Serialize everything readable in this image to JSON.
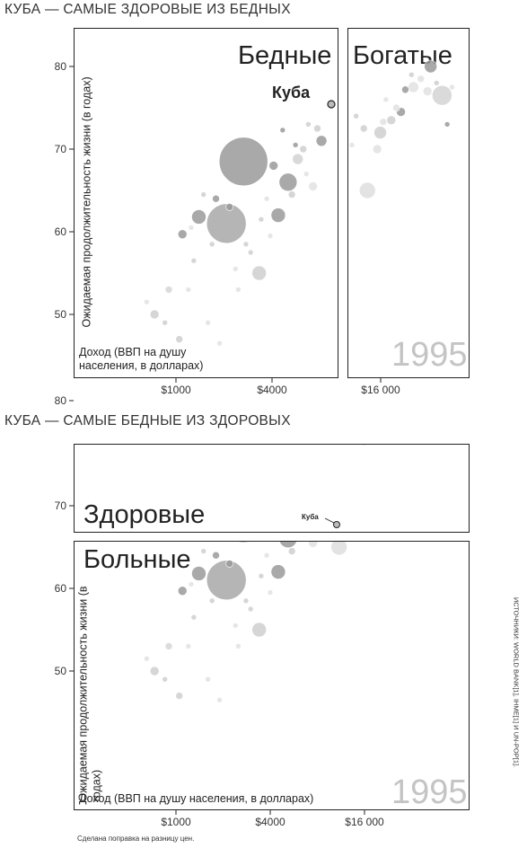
{
  "chart_data": [
    {
      "type": "scatter",
      "title": "КУБА — САМЫЕ ЗДОРОВЫЕ ИЗ БЕДНЫХ",
      "year_label": "1995",
      "panels": [
        "Бедные",
        "Богатые"
      ],
      "xlabel": "Доход (ВВП на душу населения, в долларах)",
      "ylabel": "Ожидаемая продолжительность жизни (в годах)",
      "xscale": "log",
      "x_ticks": [
        "$1000",
        "$4000",
        "$16 000"
      ],
      "y_ticks": [
        "50",
        "60",
        "70",
        "80"
      ],
      "ylim": [
        44,
        86
      ],
      "highlight": {
        "label": "Куба",
        "x": 8000,
        "y": 75.5
      },
      "bubble_size": "population",
      "grid": false
    },
    {
      "type": "scatter",
      "title": "КУБА — САМЫЕ БЕДНЫЕ ИЗ ЗДОРОВЫХ",
      "year_label": "1995",
      "panels": [
        "Здоровые",
        "Больные"
      ],
      "xlabel": "Доход (ВВП на душу населения, в долларах)",
      "ylabel": "Ожидаемая продолжительность жизни (в годах)",
      "xscale": "log",
      "x_ticks": [
        "$1000",
        "$4000",
        "$16 000"
      ],
      "y_ticks": [
        "50",
        "60",
        "70",
        "80"
      ],
      "ylim": [
        44,
        86
      ],
      "highlight": {
        "label": "Куба",
        "x": 8000,
        "y": 75.5
      },
      "bubble_size": "population",
      "grid": false
    }
  ],
  "bubbles": [
    {
      "x": 2700,
      "y": 68.5,
      "r": 27,
      "c": "#9a9a9a"
    },
    {
      "x": 2100,
      "y": 61.0,
      "r": 22,
      "c": "#a8a8a8"
    },
    {
      "x": 1400,
      "y": 61.8,
      "r": 8,
      "c": "#9a9a9a"
    },
    {
      "x": 3400,
      "y": 55.0,
      "r": 8,
      "c": "#cfcfcf"
    },
    {
      "x": 4500,
      "y": 62.0,
      "r": 8,
      "c": "#9a9a9a"
    },
    {
      "x": 5200,
      "y": 66.0,
      "r": 10,
      "c": "#9a9a9a"
    },
    {
      "x": 6000,
      "y": 68.8,
      "r": 6,
      "c": "#d2d2d2"
    },
    {
      "x": 8500,
      "y": 71.0,
      "r": 6,
      "c": "#9a9a9a"
    },
    {
      "x": 11000,
      "y": 65.0,
      "r": 9,
      "c": "#dedede"
    },
    {
      "x": 13000,
      "y": 72.0,
      "r": 7,
      "c": "#cfcfcf"
    },
    {
      "x": 25000,
      "y": 80.0,
      "r": 7,
      "c": "#9a9a9a"
    },
    {
      "x": 29000,
      "y": 76.5,
      "r": 11,
      "c": "#d4d4d4"
    },
    {
      "x": 20000,
      "y": 77.5,
      "r": 6,
      "c": "#e2e2e2"
    },
    {
      "x": 24000,
      "y": 77.0,
      "r": 5,
      "c": "#e2e2e2"
    },
    {
      "x": 15000,
      "y": 73.5,
      "r": 5,
      "c": "#cfcfcf"
    },
    {
      "x": 12500,
      "y": 70.0,
      "r": 5,
      "c": "#e2e2e2"
    },
    {
      "x": 17000,
      "y": 74.5,
      "r": 5,
      "c": "#9a9a9a"
    },
    {
      "x": 13500,
      "y": 73.3,
      "r": 4,
      "c": "#e2e2e2"
    },
    {
      "x": 2200,
      "y": 63.0,
      "r": 4,
      "c": "#9a9a9a"
    },
    {
      "x": 1100,
      "y": 59.7,
      "r": 5,
      "c": "#9a9a9a"
    },
    {
      "x": 730,
      "y": 50.0,
      "r": 5,
      "c": "#cfcfcf"
    },
    {
      "x": 900,
      "y": 53.0,
      "r": 4,
      "c": "#d6d6d6"
    },
    {
      "x": 1050,
      "y": 47.0,
      "r": 4,
      "c": "#cfcfcf"
    },
    {
      "x": 5500,
      "y": 64.5,
      "r": 4,
      "c": "#cfcfcf"
    },
    {
      "x": 7500,
      "y": 65.5,
      "r": 5,
      "c": "#e2e2e2"
    },
    {
      "x": 6500,
      "y": 70.0,
      "r": 4,
      "c": "#cfcfcf"
    },
    {
      "x": 8000,
      "y": 72.5,
      "r": 4,
      "c": "#cfcfcf"
    },
    {
      "x": 4200,
      "y": 68.0,
      "r": 5,
      "c": "#9a9a9a"
    },
    {
      "x": 3000,
      "y": 57.5,
      "r": 3,
      "c": "#cfcfcf"
    },
    {
      "x": 1700,
      "y": 58.5,
      "r": 3,
      "c": "#cfcfcf"
    },
    {
      "x": 1800,
      "y": 64.0,
      "r": 4,
      "c": "#9a9a9a"
    },
    {
      "x": 1500,
      "y": 64.5,
      "r": 3,
      "c": "#cfcfcf"
    },
    {
      "x": 1300,
      "y": 56.5,
      "r": 3,
      "c": "#cfcfcf"
    },
    {
      "x": 1200,
      "y": 53.0,
      "r": 3,
      "c": "#e2e2e2"
    },
    {
      "x": 2500,
      "y": 53.0,
      "r": 3,
      "c": "#e2e2e2"
    },
    {
      "x": 3500,
      "y": 61.5,
      "r": 3,
      "c": "#cfcfcf"
    },
    {
      "x": 4800,
      "y": 72.3,
      "r": 3,
      "c": "#9a9a9a"
    },
    {
      "x": 7000,
      "y": 73.0,
      "r": 3,
      "c": "#cfcfcf"
    },
    {
      "x": 9000,
      "y": 70.5,
      "r": 3,
      "c": "#e2e2e2"
    },
    {
      "x": 10500,
      "y": 72.5,
      "r": 4,
      "c": "#cfcfcf"
    },
    {
      "x": 18000,
      "y": 77.2,
      "r": 4,
      "c": "#9a9a9a"
    },
    {
      "x": 22000,
      "y": 78.5,
      "r": 4,
      "c": "#e2e2e2"
    },
    {
      "x": 27000,
      "y": 78.0,
      "r": 3,
      "c": "#cfcfcf"
    },
    {
      "x": 31000,
      "y": 73.0,
      "r": 3,
      "c": "#9a9a9a"
    },
    {
      "x": 650,
      "y": 51.5,
      "r": 3,
      "c": "#e2e2e2"
    },
    {
      "x": 850,
      "y": 49.0,
      "r": 3,
      "c": "#cfcfcf"
    },
    {
      "x": 1600,
      "y": 49.0,
      "r": 3,
      "c": "#e2e2e2"
    },
    {
      "x": 1900,
      "y": 46.5,
      "r": 3,
      "c": "#e2e2e2"
    },
    {
      "x": 2800,
      "y": 58.5,
      "r": 3,
      "c": "#cfcfcf"
    },
    {
      "x": 3800,
      "y": 64.0,
      "r": 3,
      "c": "#e2e2e2"
    },
    {
      "x": 5800,
      "y": 70.5,
      "r": 3,
      "c": "#9a9a9a"
    },
    {
      "x": 6800,
      "y": 67.0,
      "r": 3,
      "c": "#e2e2e2"
    },
    {
      "x": 9500,
      "y": 74.0,
      "r": 3,
      "c": "#cfcfcf"
    },
    {
      "x": 14000,
      "y": 76.0,
      "r": 3,
      "c": "#e2e2e2"
    },
    {
      "x": 16000,
      "y": 75.0,
      "r": 4,
      "c": "#e2e2e2"
    },
    {
      "x": 19500,
      "y": 79.0,
      "r": 3,
      "c": "#cfcfcf"
    },
    {
      "x": 33000,
      "y": 77.5,
      "r": 3,
      "c": "#e2e2e2"
    },
    {
      "x": 2400,
      "y": 55.5,
      "r": 3,
      "c": "#e2e2e2"
    },
    {
      "x": 1250,
      "y": 60.5,
      "r": 3,
      "c": "#e2e2e2"
    },
    {
      "x": 4000,
      "y": 59.5,
      "r": 3,
      "c": "#e2e2e2"
    }
  ],
  "note": "Сделана поправка на разницу цен.",
  "source": "ИСТОЧНИКИ: WORLD BANK[1], IHME[1] И UN-POP[1]."
}
